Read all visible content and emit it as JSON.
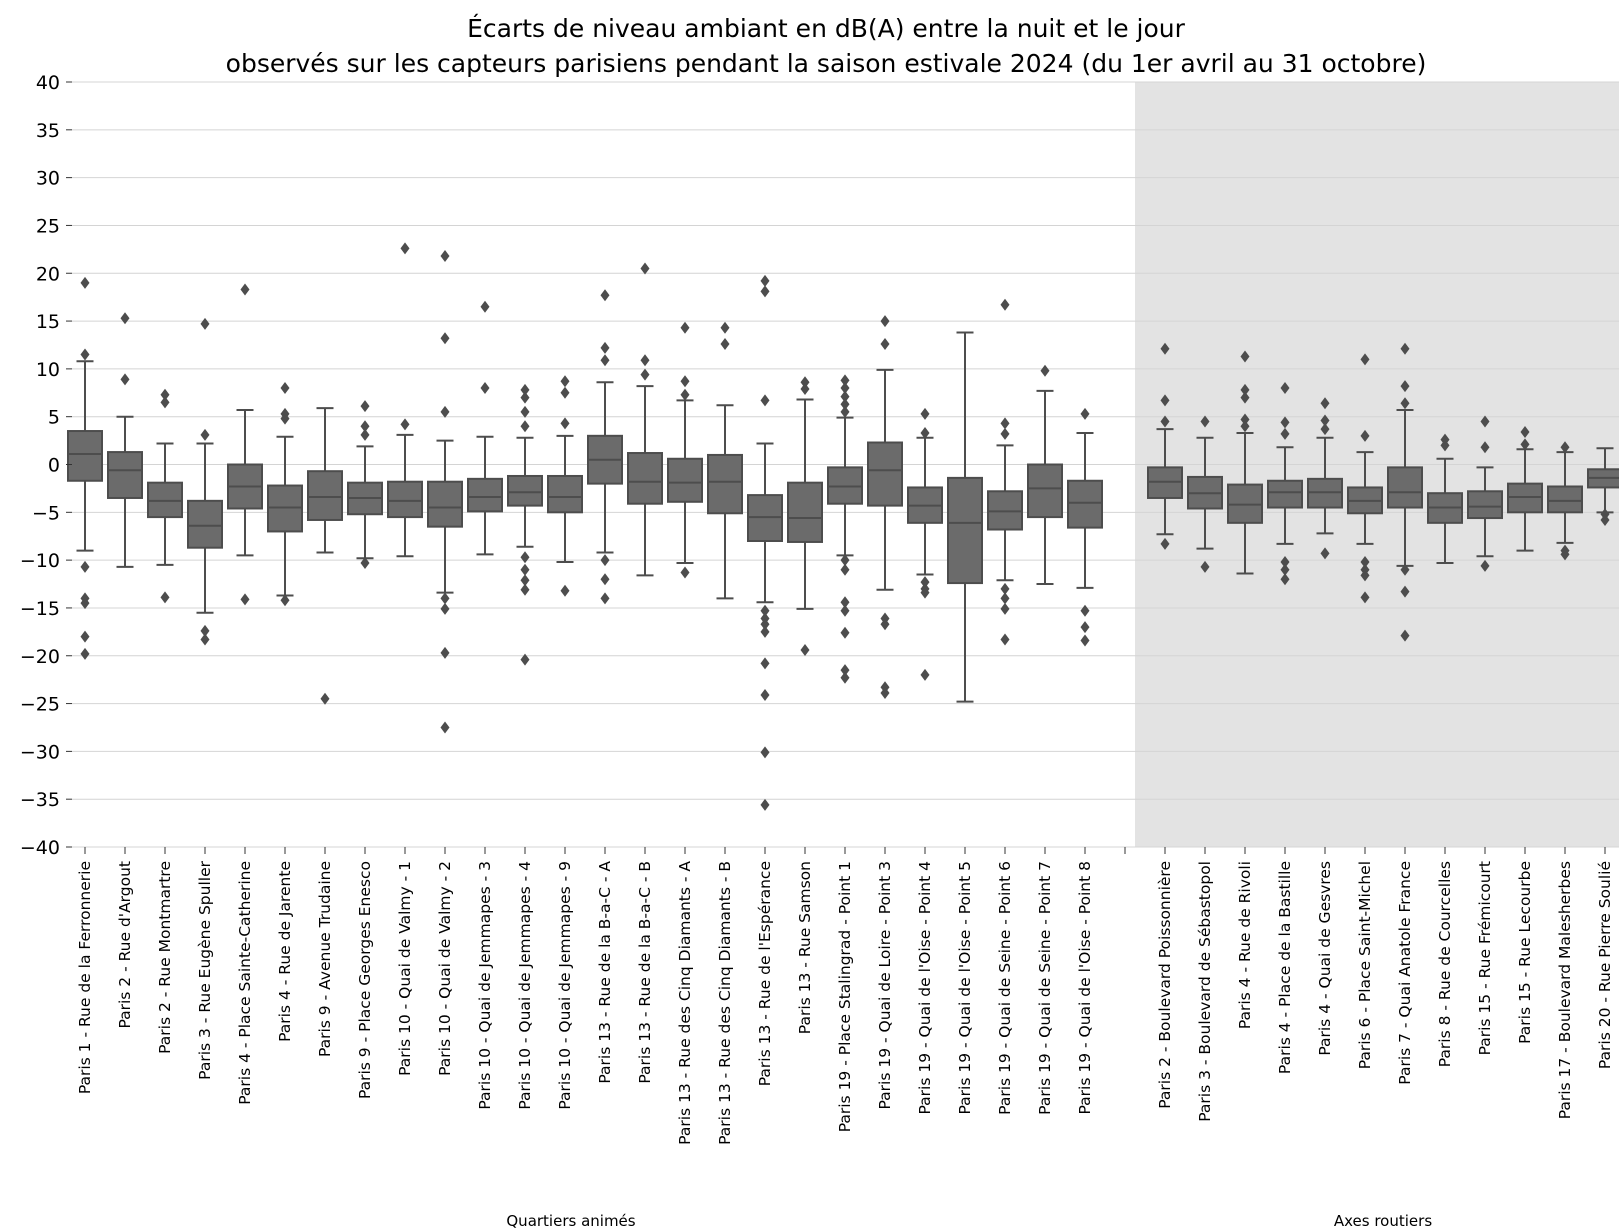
{
  "chart_data": {
    "type": "box",
    "title_line1": "Écarts de niveau ambiant en dB(A) entre la nuit et le jour",
    "title_line2": "observés sur les capteurs parisiens pendant la saison estivale 2024 (du 1er avril au 31 octobre)",
    "ylim": [
      -40,
      40
    ],
    "yticks": [
      40,
      35,
      30,
      25,
      20,
      15,
      10,
      5,
      0,
      -5,
      -10,
      -15,
      -20,
      -25,
      -30,
      -35,
      -40
    ],
    "ytick_labels": [
      "40",
      "35",
      "30",
      "25",
      "20",
      "15",
      "10",
      "5",
      "0",
      "−5",
      "−10",
      "−15",
      "−20",
      "−25",
      "−30",
      "−35",
      "−40"
    ],
    "grid": true,
    "box_color": "#6b6b6b",
    "shade_color": "#e3e3e3",
    "groups": [
      {
        "label": "Quartiers animés",
        "shaded": false,
        "boxes": [
          {
            "name": "Paris 1 - Rue de la Ferronnerie",
            "q1": -1.7,
            "median": 1.1,
            "q3": 3.5,
            "whisker_low": -9,
            "whisker_high": 10.8,
            "outliers": [
              19,
              11.5,
              -10.7,
              -14,
              -14.5,
              -18,
              -19.8
            ]
          },
          {
            "name": "Paris 2 - Rue d'Argout",
            "q1": -3.5,
            "median": -0.6,
            "q3": 1.3,
            "whisker_low": -10.7,
            "whisker_high": 5,
            "outliers": [
              15.3,
              8.9
            ]
          },
          {
            "name": "Paris 2 - Rue Montmartre",
            "q1": -5.5,
            "median": -3.8,
            "q3": -1.9,
            "whisker_low": -10.5,
            "whisker_high": 2.2,
            "outliers": [
              7.3,
              6.5,
              -13.9
            ]
          },
          {
            "name": "Paris 3 - Rue Eugène Spuller",
            "q1": -8.7,
            "median": -6.4,
            "q3": -3.8,
            "whisker_low": -15.5,
            "whisker_high": 2.2,
            "outliers": [
              14.7,
              3.1,
              -17.4,
              -18.3
            ]
          },
          {
            "name": "Paris 4 - Place Sainte-Catherine",
            "q1": -4.6,
            "median": -2.3,
            "q3": 0,
            "whisker_low": -9.5,
            "whisker_high": 5.7,
            "outliers": [
              18.3,
              -14.1
            ]
          },
          {
            "name": "Paris 4 - Rue de Jarente",
            "q1": -7,
            "median": -4.5,
            "q3": -2.2,
            "whisker_low": -13.7,
            "whisker_high": 2.9,
            "outliers": [
              8,
              5.3,
              4.8,
              -14.2
            ]
          },
          {
            "name": "Paris 9 - Avenue Trudaine",
            "q1": -5.8,
            "median": -3.4,
            "q3": -0.7,
            "whisker_low": -9.2,
            "whisker_high": 5.9,
            "outliers": [
              -24.5
            ]
          },
          {
            "name": "Paris 9 - Place Georges Enesco",
            "q1": -5.2,
            "median": -3.5,
            "q3": -1.9,
            "whisker_low": -9.8,
            "whisker_high": 1.9,
            "outliers": [
              6.1,
              4,
              3.1,
              -10.3
            ]
          },
          {
            "name": "Paris 10 - Quai de Valmy - 1",
            "q1": -5.5,
            "median": -3.8,
            "q3": -1.8,
            "whisker_low": -9.6,
            "whisker_high": 3.1,
            "outliers": [
              22.6,
              4.2
            ]
          },
          {
            "name": "Paris 10 - Quai de Valmy - 2",
            "q1": -6.5,
            "median": -4.5,
            "q3": -1.8,
            "whisker_low": -13.4,
            "whisker_high": 2.5,
            "outliers": [
              21.8,
              13.2,
              5.5,
              -14,
              -15.1,
              -19.7,
              -27.5
            ]
          },
          {
            "name": "Paris 10 - Quai de Jemmapes - 3",
            "q1": -4.9,
            "median": -3.4,
            "q3": -1.5,
            "whisker_low": -9.4,
            "whisker_high": 2.9,
            "outliers": [
              16.5,
              8
            ]
          },
          {
            "name": "Paris 10 - Quai de Jemmapes - 4",
            "q1": -4.3,
            "median": -2.9,
            "q3": -1.2,
            "whisker_low": -8.6,
            "whisker_high": 2.8,
            "outliers": [
              7.8,
              7,
              5.5,
              4,
              -9.7,
              -11,
              -12.1,
              -13.1,
              -20.4
            ]
          },
          {
            "name": "Paris 10 - Quai de Jemmapes - 9",
            "q1": -5,
            "median": -3.4,
            "q3": -1.2,
            "whisker_low": -10.2,
            "whisker_high": 3,
            "outliers": [
              8.7,
              7.5,
              4.3,
              -13.2
            ]
          },
          {
            "name": "Paris 13 - Rue de la B-a-C - A",
            "q1": -2,
            "median": 0.5,
            "q3": 3,
            "whisker_low": -9.2,
            "whisker_high": 8.6,
            "outliers": [
              17.7,
              12.2,
              10.9,
              -10,
              -12,
              -14
            ]
          },
          {
            "name": "Paris 13 - Rue de la B-a-C - B",
            "q1": -4.1,
            "median": -1.8,
            "q3": 1.2,
            "whisker_low": -11.6,
            "whisker_high": 8.2,
            "outliers": [
              20.5,
              10.9,
              9.4
            ]
          },
          {
            "name": "Paris 13 - Rue des Cinq Diamants - A",
            "q1": -3.9,
            "median": -1.9,
            "q3": 0.6,
            "whisker_low": -10.3,
            "whisker_high": 6.7,
            "outliers": [
              14.3,
              8.7,
              7.3,
              -11.3
            ]
          },
          {
            "name": "Paris 13 - Rue des Cinq Diamants - B",
            "q1": -5.1,
            "median": -1.8,
            "q3": 1,
            "whisker_low": -14,
            "whisker_high": 6.2,
            "outliers": [
              14.3,
              12.6
            ]
          },
          {
            "name": "Paris 13 - Rue de l'Espérance",
            "q1": -8,
            "median": -5.5,
            "q3": -3.2,
            "whisker_low": -14.4,
            "whisker_high": 2.2,
            "outliers": [
              19.2,
              18.1,
              6.7,
              -15.3,
              -16.1,
              -16.7,
              -17.5,
              -20.8,
              -24.1,
              -30.1,
              -35.6
            ]
          },
          {
            "name": "Paris 13 - Rue Samson",
            "q1": -8.1,
            "median": -5.6,
            "q3": -1.9,
            "whisker_low": -15.1,
            "whisker_high": 6.8,
            "outliers": [
              8.6,
              7.9,
              -19.4
            ]
          },
          {
            "name": "Paris 19 - Place Stalingrad - Point 1",
            "q1": -4.1,
            "median": -2.3,
            "q3": -0.3,
            "whisker_low": -9.5,
            "whisker_high": 4.9,
            "outliers": [
              8.8,
              8,
              7.1,
              6.3,
              5.5,
              -10,
              -11,
              -14.4,
              -15.3,
              -17.6,
              -21.5,
              -22.3
            ]
          },
          {
            "name": "Paris 19 - Quai de Loire - Point 3",
            "q1": -4.3,
            "median": -0.6,
            "q3": 2.3,
            "whisker_low": -13.1,
            "whisker_high": 9.9,
            "outliers": [
              15,
              12.6,
              -16.1,
              -16.7,
              -23.3,
              -23.9
            ]
          },
          {
            "name": "Paris 19 - Quai de l'Oise - Point 4",
            "q1": -6.1,
            "median": -4.3,
            "q3": -2.4,
            "whisker_low": -11.5,
            "whisker_high": 2.8,
            "outliers": [
              5.3,
              3.3,
              -12.3,
              -13,
              -13.4,
              -22
            ]
          },
          {
            "name": "Paris 19 - Quai de l'Oise - Point 5",
            "q1": -12.4,
            "median": -6.1,
            "q3": -1.4,
            "whisker_low": -24.8,
            "whisker_high": 13.8,
            "outliers": []
          },
          {
            "name": "Paris 19 - Quai de Seine - Point 6",
            "q1": -6.8,
            "median": -4.9,
            "q3": -2.8,
            "whisker_low": -12.1,
            "whisker_high": 2,
            "outliers": [
              16.7,
              4.3,
              3.2,
              -13,
              -14,
              -15.1,
              -18.3
            ]
          },
          {
            "name": "Paris 19 - Quai de Seine - Point 7",
            "q1": -5.5,
            "median": -2.5,
            "q3": 0,
            "whisker_low": -12.5,
            "whisker_high": 7.7,
            "outliers": [
              9.8
            ]
          },
          {
            "name": "Paris 19 - Quai de l'Oise - Point 8",
            "q1": -6.6,
            "median": -4,
            "q3": -1.7,
            "whisker_low": -12.9,
            "whisker_high": 3.3,
            "outliers": [
              5.3,
              -15.3,
              -17,
              -18.4
            ]
          }
        ]
      },
      {
        "label": "Axes routiers",
        "shaded": true,
        "boxes": [
          {
            "name": "Paris 2 - Boulevard Poissonnière",
            "q1": -3.5,
            "median": -1.8,
            "q3": -0.3,
            "whisker_low": -7.3,
            "whisker_high": 3.7,
            "outliers": [
              12.1,
              6.7,
              4.5,
              -8.3
            ]
          },
          {
            "name": "Paris 3 - Boulevard de Sébastopol",
            "q1": -4.6,
            "median": -3,
            "q3": -1.3,
            "whisker_low": -8.8,
            "whisker_high": 2.8,
            "outliers": [
              4.5,
              -10.7
            ]
          },
          {
            "name": "Paris 4 - Rue de Rivoli",
            "q1": -6.1,
            "median": -4.2,
            "q3": -2.1,
            "whisker_low": -11.4,
            "whisker_high": 3.3,
            "outliers": [
              11.3,
              7.8,
              7,
              4.7,
              4
            ]
          },
          {
            "name": "Paris 4 - Place de la Bastille",
            "q1": -4.5,
            "median": -2.9,
            "q3": -1.7,
            "whisker_low": -8.3,
            "whisker_high": 1.8,
            "outliers": [
              8,
              4.4,
              3.2,
              -10.2,
              -11,
              -12
            ]
          },
          {
            "name": "Paris 4 - Quai de Gesvres",
            "q1": -4.5,
            "median": -2.9,
            "q3": -1.5,
            "whisker_low": -7.2,
            "whisker_high": 2.8,
            "outliers": [
              6.4,
              4.6,
              3.7,
              -9.3
            ]
          },
          {
            "name": "Paris 6 - Place Saint-Michel",
            "q1": -5.1,
            "median": -3.8,
            "q3": -2.4,
            "whisker_low": -8.3,
            "whisker_high": 1.3,
            "outliers": [
              11,
              3,
              -10.2,
              -11,
              -11.6,
              -13.9
            ]
          },
          {
            "name": "Paris 7 - Quai Anatole France",
            "q1": -4.5,
            "median": -2.9,
            "q3": -0.3,
            "whisker_low": -10.6,
            "whisker_high": 5.7,
            "outliers": [
              12.1,
              8.2,
              6.4,
              -11,
              -13.3,
              -17.9
            ]
          },
          {
            "name": "Paris 8 - Rue de Courcelles",
            "q1": -6.1,
            "median": -4.5,
            "q3": -3,
            "whisker_low": -10.3,
            "whisker_high": 0.6,
            "outliers": [
              2.6,
              2
            ]
          },
          {
            "name": "Paris 15 - Rue Frémicourt",
            "q1": -5.6,
            "median": -4.4,
            "q3": -2.8,
            "whisker_low": -9.6,
            "whisker_high": -0.3,
            "outliers": [
              4.5,
              1.8,
              -10.6
            ]
          },
          {
            "name": "Paris 15 - Rue Lecourbe",
            "q1": -5,
            "median": -3.4,
            "q3": -2,
            "whisker_low": -9,
            "whisker_high": 1.6,
            "outliers": [
              3.4,
              2.1
            ]
          },
          {
            "name": "Paris 17 - Boulevard Malesherbes",
            "q1": -5,
            "median": -3.8,
            "q3": -2.3,
            "whisker_low": -8.2,
            "whisker_high": 1.3,
            "outliers": [
              1.8,
              -9,
              -9.4
            ]
          },
          {
            "name": "Paris 20 - Rue Pierre Soulié",
            "q1": -2.4,
            "median": -1.4,
            "q3": -0.5,
            "whisker_low": -5,
            "whisker_high": 1.7,
            "outliers": [
              -5.2,
              -5.8
            ]
          }
        ]
      }
    ]
  }
}
